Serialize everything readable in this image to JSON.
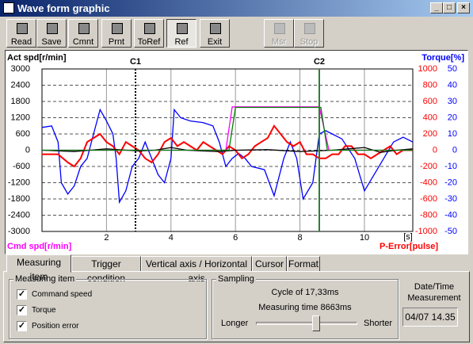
{
  "window": {
    "title": "Wave form graphic"
  },
  "toolbar": [
    {
      "label": "Read",
      "state": "normal"
    },
    {
      "label": "Save",
      "state": "normal"
    },
    {
      "label": "Cmnt",
      "state": "normal"
    },
    {
      "label": "Prnt",
      "state": "normal"
    },
    {
      "label": "ToRef",
      "state": "normal"
    },
    {
      "label": "Ref",
      "state": "pressed"
    },
    {
      "label": "Exit",
      "state": "normal"
    },
    {
      "label": "Msr",
      "state": "disabled"
    },
    {
      "label": "Stop",
      "state": "disabled"
    }
  ],
  "chart_data": {
    "type": "line",
    "y_label": "Act spd[r/min]",
    "y_label_bottom": "Cmd spd[r/min]",
    "y2_label": "Torque[%]",
    "y3_label": "P-Error[pulse]",
    "x_unit": "[s]",
    "xlim": [
      0,
      11.5
    ],
    "xticks": [
      2,
      4,
      6,
      8,
      10
    ],
    "ylim": [
      -3000,
      3000
    ],
    "yticks": [
      3000,
      2400,
      1800,
      1200,
      600,
      0,
      -600,
      -1200,
      -1800,
      -2400,
      -3000
    ],
    "y3lim": [
      -1000,
      1000
    ],
    "y3ticks": [
      1000,
      800,
      600,
      400,
      200,
      0,
      -200,
      -400,
      -600,
      -800,
      -1000
    ],
    "y2lim": [
      -50,
      50
    ],
    "y2ticks": [
      50,
      40,
      30,
      20,
      10,
      0,
      -10,
      -20,
      -30,
      -40,
      -50
    ],
    "grid": true,
    "cursors": [
      {
        "label": "C1",
        "x": 2.9,
        "color": "#000000"
      },
      {
        "label": "C2",
        "x": 8.6,
        "color": "#2e7d32"
      }
    ],
    "series": [
      {
        "color": "#0000ff",
        "axis": "y2",
        "x": [
          0,
          0.3,
          0.5,
          0.6,
          0.8,
          1.0,
          1.2,
          1.4,
          1.6,
          1.8,
          2.0,
          2.2,
          2.3,
          2.4,
          2.6,
          2.8,
          3.0,
          3.2,
          3.4,
          3.6,
          3.8,
          4.0,
          4.1,
          4.3,
          4.6,
          5.0,
          5.3,
          5.5,
          5.7,
          5.9,
          6.1,
          6.3,
          6.5,
          6.9,
          7.2,
          7.5,
          7.7,
          7.9,
          8.1,
          8.4,
          8.6,
          8.8,
          9.0,
          9.3,
          9.7,
          10.0,
          10.3,
          10.6,
          10.9,
          11.2,
          11.5
        ],
        "values": [
          14,
          15,
          5,
          -20,
          -27,
          -22,
          -10,
          -5,
          10,
          25,
          18,
          10,
          -5,
          -32,
          -25,
          -10,
          -5,
          5,
          -5,
          -15,
          -20,
          -5,
          25,
          20,
          18,
          17,
          15,
          5,
          -10,
          -5,
          -2,
          -5,
          -10,
          -12,
          -28,
          -5,
          5,
          -5,
          -30,
          -20,
          10,
          12,
          10,
          7,
          -5,
          -25,
          -15,
          -5,
          5,
          8,
          5
        ]
      },
      {
        "color": "#ff0000",
        "axis": "y3",
        "x": [
          0,
          0.5,
          0.8,
          1.0,
          1.2,
          1.4,
          1.6,
          1.8,
          2.0,
          2.2,
          2.4,
          2.6,
          2.8,
          3.0,
          3.2,
          3.4,
          3.6,
          3.8,
          4.0,
          4.2,
          4.4,
          4.6,
          4.8,
          5.0,
          5.2,
          5.4,
          5.6,
          5.8,
          6.0,
          6.2,
          6.4,
          6.6,
          6.8,
          7.0,
          7.2,
          7.4,
          7.6,
          7.8,
          8.0,
          8.2,
          8.4,
          8.6,
          8.8,
          9.0,
          9.2,
          9.4,
          9.6,
          9.8,
          10.0,
          10.2,
          10.4,
          10.6,
          10.8,
          11.0,
          11.2,
          11.5
        ],
        "values": [
          -50,
          -50,
          -150,
          -200,
          -100,
          100,
          150,
          200,
          100,
          50,
          -50,
          100,
          50,
          0,
          -100,
          -150,
          -50,
          100,
          150,
          50,
          100,
          50,
          0,
          100,
          50,
          0,
          -50,
          50,
          0,
          -100,
          -50,
          50,
          100,
          150,
          300,
          200,
          100,
          50,
          100,
          -50,
          -50,
          -100,
          -100,
          -50,
          -50,
          50,
          50,
          -50,
          -50,
          -100,
          -50,
          0,
          50,
          -50,
          0,
          0
        ]
      },
      {
        "color": "#000000",
        "axis": "y",
        "x": [
          0,
          1,
          2,
          3,
          3.5,
          4,
          4.5,
          5,
          5.5,
          6,
          7,
          8,
          9,
          9.5,
          10,
          10.5,
          11,
          11.5
        ],
        "values": [
          0,
          -50,
          50,
          -30,
          0,
          100,
          0,
          -30,
          -50,
          0,
          20,
          -50,
          0,
          50,
          100,
          -80,
          0,
          50
        ]
      },
      {
        "name": "Cmd spd[r/min]",
        "color": "#ff00ff",
        "axis": "y",
        "x": [
          0,
          5.7,
          5.9,
          8.6,
          8.9,
          11.5
        ],
        "values": [
          0,
          0,
          1600,
          1600,
          0,
          0
        ]
      },
      {
        "name": "Act spd[r/min]",
        "color": "#008000",
        "axis": "y",
        "x": [
          0,
          5.8,
          6.0,
          8.65,
          8.85,
          11.5
        ],
        "values": [
          0,
          0,
          1580,
          1580,
          0,
          0
        ]
      }
    ]
  },
  "tabs": [
    {
      "label": "Measuring item",
      "selected": true
    },
    {
      "label": "Trigger condition",
      "selected": false
    },
    {
      "label": "Vertical axis / Horizontal axis",
      "selected": false
    },
    {
      "label": "Cursor",
      "selected": false
    },
    {
      "label": "Format",
      "selected": false
    }
  ],
  "measuring_item": {
    "title": "Measuring item",
    "items": [
      {
        "label": "Command speed",
        "checked": true
      },
      {
        "label": "Torque",
        "checked": true
      },
      {
        "label": "Position error",
        "checked": true
      }
    ]
  },
  "sampling": {
    "title": "Sampling",
    "cycle": "Cycle of 17,33ms",
    "measuring_time": "Measuring time 8663ms",
    "left_label": "Longer",
    "right_label": "Shorter"
  },
  "datetime": {
    "title": "Date/Time Measurement",
    "value": "04/07 14.35"
  }
}
